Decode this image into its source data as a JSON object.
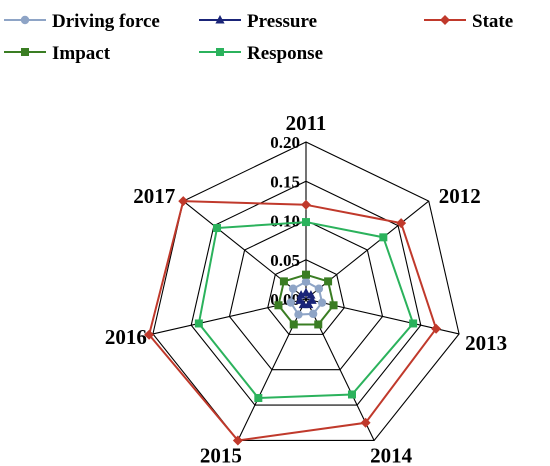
{
  "chart_data": {
    "type": "radar",
    "categories": [
      "2011",
      "2012",
      "2013",
      "2014",
      "2015",
      "2016",
      "2017"
    ],
    "ticks": [
      "0.00",
      "0.05",
      "0.10",
      "0.15",
      "0.20"
    ],
    "rlim": [
      0,
      0.2
    ],
    "grid": true,
    "legend_position": "top",
    "series": [
      {
        "name": "Driving force",
        "color": "#8ea4c6",
        "marker": "circle",
        "values": [
          0.022,
          0.021,
          0.021,
          0.021,
          0.022,
          0.02,
          0.021
        ]
      },
      {
        "name": "Pressure",
        "color": "#1a2478",
        "marker": "triangle",
        "values": [
          0.008,
          0.008,
          0.008,
          0.008,
          0.008,
          0.008,
          0.008
        ]
      },
      {
        "name": "State",
        "color": "#c0392b",
        "marker": "diamond",
        "values": [
          0.12,
          0.155,
          0.17,
          0.175,
          0.2,
          0.205,
          0.2
        ]
      },
      {
        "name": "Impact",
        "color": "#3a7d23",
        "marker": "square",
        "values": [
          0.031,
          0.036,
          0.036,
          0.036,
          0.036,
          0.036,
          0.036
        ]
      },
      {
        "name": "Response",
        "color": "#2bb25c",
        "marker": "square",
        "values": [
          0.098,
          0.126,
          0.14,
          0.135,
          0.14,
          0.14,
          0.145
        ]
      }
    ]
  }
}
